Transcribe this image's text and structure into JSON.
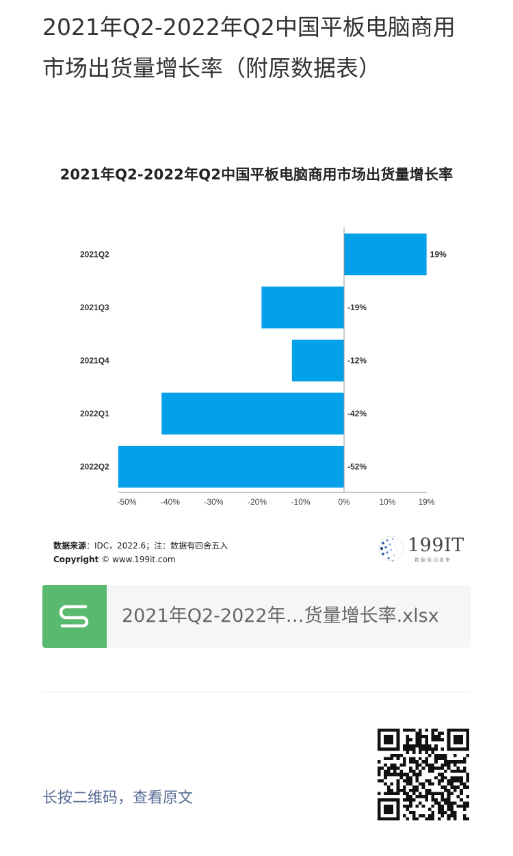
{
  "article": {
    "title": "2021年Q2-2022年Q2中国平板电脑商用市场出货量增长率（附原数据表）"
  },
  "chart": {
    "source_label": "数据来源",
    "source_text": "：IDC，2022.6；注：数据有四舍五入",
    "copyright_label": "Copyright",
    "copyright_text": " © www.199it.com",
    "logo": {
      "name": "199IT",
      "tagline": "数据驱动未来"
    }
  },
  "chart_data": {
    "type": "bar",
    "orientation": "horizontal",
    "title": "2021年Q2-2022年Q2中国平板电脑商用市场出货量增长率",
    "categories": [
      "2021Q2",
      "2021Q3",
      "2021Q4",
      "2022Q1",
      "2022Q2"
    ],
    "values": [
      19,
      -19,
      -12,
      -42,
      -52
    ],
    "value_labels": [
      "19%",
      "-19%",
      "-12%",
      "-42%",
      "-52%"
    ],
    "x_ticks": [
      -50,
      -40,
      -30,
      -20,
      -10,
      0,
      10,
      19
    ],
    "x_tick_labels": [
      "-50%",
      "-40%",
      "-30%",
      "-20%",
      "-10%",
      "0%",
      "10%",
      "19%"
    ],
    "xlim": [
      -52,
      19
    ],
    "bar_color": "#04a0e9",
    "grid": false,
    "xlabel": "",
    "ylabel": ""
  },
  "attachment": {
    "icon": "spreadsheet-s-icon",
    "icon_color": "#58b96f",
    "file_name": "2021年Q2-2022年…货量增长率.xlsx"
  },
  "footer": {
    "qr_hint": "长按二维码，查看原文",
    "qr_icon": "qr-code-icon"
  }
}
